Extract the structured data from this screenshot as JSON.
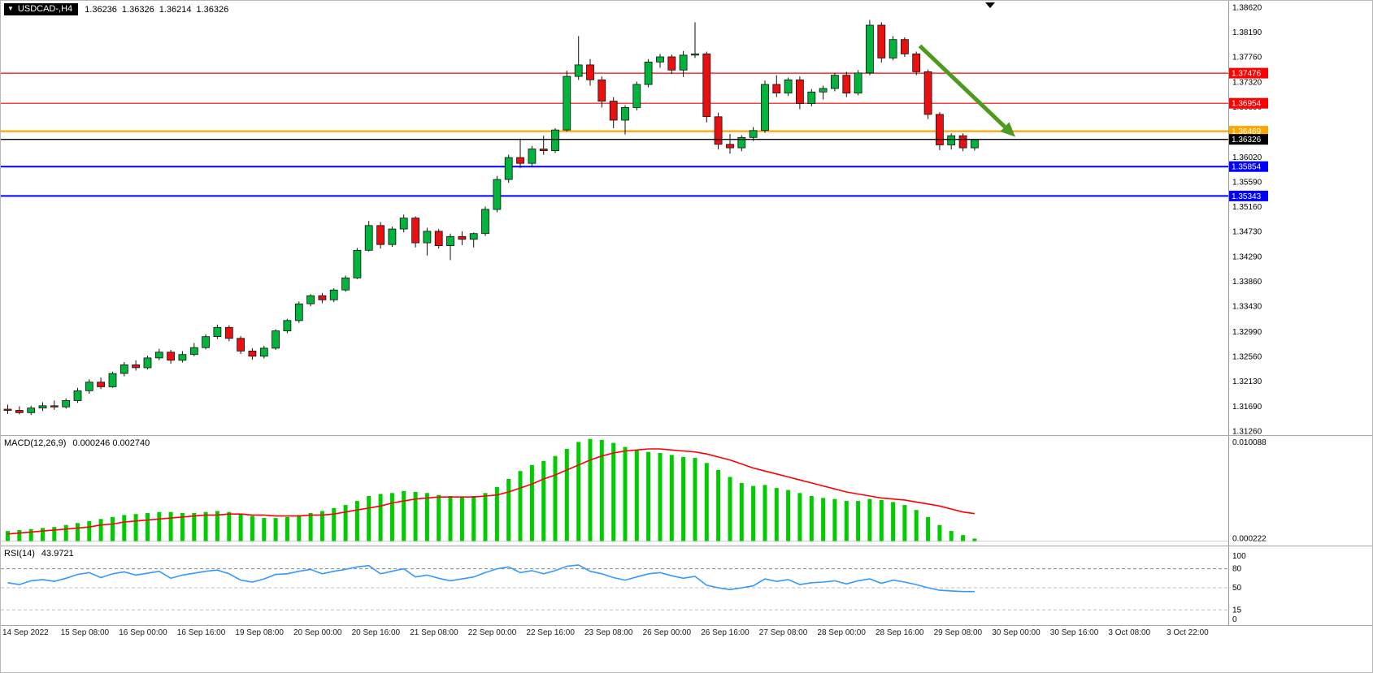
{
  "header": {
    "dropdown_icon": "▼",
    "symbol_timeframe": "USDCAD-,H4",
    "open": "1.36236",
    "high": "1.36326",
    "low": "1.36214",
    "close": "1.36326"
  },
  "colors": {
    "bull": "#00B43C",
    "bear": "#E81010",
    "wick": "#111111",
    "macd_hist": "#00CC00",
    "macd_signal": "#FF0000",
    "rsi_line": "#3399FF",
    "resistance": "#FF0000",
    "pivot": "#FFA500",
    "support": "#0000FF",
    "current": "#000000",
    "arrow": "#4E9A1E",
    "axis_text": "#000000",
    "separator": "#A8A8A8"
  },
  "price_axis": {
    "ticks": [
      "1.38620",
      "1.38190",
      "1.37760",
      "1.37320",
      "1.36890",
      "1.36460",
      "1.36020",
      "1.35590",
      "1.35160",
      "1.34730",
      "1.34290",
      "1.33860",
      "1.33430",
      "1.32990",
      "1.32560",
      "1.32130",
      "1.31690",
      "1.31260"
    ]
  },
  "time_axis": {
    "labels": [
      "14 Sep 2022",
      "15 Sep 08:00",
      "16 Sep 00:00",
      "16 Sep 16:00",
      "19 Sep 08:00",
      "20 Sep 00:00",
      "20 Sep 16:00",
      "21 Sep 08:00",
      "22 Sep 00:00",
      "22 Sep 16:00",
      "23 Sep 08:00",
      "26 Sep 00:00",
      "26 Sep 16:00",
      "27 Sep 08:00",
      "28 Sep 00:00",
      "28 Sep 16:00",
      "29 Sep 08:00",
      "30 Sep 00:00",
      "30 Sep 16:00",
      "3 Oct 08:00",
      "3 Oct 22:00"
    ]
  },
  "chart_data": [
    {
      "type": "candlestick",
      "title": "USDCAD H4",
      "ylim": [
        1.3126,
        1.3862
      ],
      "candles": [
        [
          1.3164,
          1.3172,
          1.3156,
          1.3162
        ],
        [
          1.3162,
          1.3169,
          1.3155,
          1.3158
        ],
        [
          1.3158,
          1.317,
          1.3154,
          1.3166
        ],
        [
          1.3166,
          1.3176,
          1.3161,
          1.317
        ],
        [
          1.317,
          1.3179,
          1.3163,
          1.3168
        ],
        [
          1.3168,
          1.3183,
          1.3165,
          1.3179
        ],
        [
          1.3179,
          1.3201,
          1.3175,
          1.3196
        ],
        [
          1.3196,
          1.3216,
          1.3191,
          1.3211
        ],
        [
          1.3211,
          1.3219,
          1.3199,
          1.3203
        ],
        [
          1.3203,
          1.3229,
          1.3201,
          1.3226
        ],
        [
          1.3226,
          1.3246,
          1.3221,
          1.3241
        ],
        [
          1.3241,
          1.3249,
          1.3231,
          1.3236
        ],
        [
          1.3236,
          1.3257,
          1.3233,
          1.3253
        ],
        [
          1.3253,
          1.3269,
          1.3249,
          1.3263
        ],
        [
          1.3263,
          1.3267,
          1.3243,
          1.3249
        ],
        [
          1.3249,
          1.3265,
          1.3245,
          1.3259
        ],
        [
          1.3259,
          1.3279,
          1.3256,
          1.3271
        ],
        [
          1.3271,
          1.3294,
          1.3268,
          1.329
        ],
        [
          1.329,
          1.3311,
          1.3286,
          1.3306
        ],
        [
          1.3306,
          1.331,
          1.3282,
          1.3287
        ],
        [
          1.3287,
          1.3291,
          1.326,
          1.3265
        ],
        [
          1.3265,
          1.327,
          1.325,
          1.3256
        ],
        [
          1.3256,
          1.3274,
          1.3252,
          1.327
        ],
        [
          1.327,
          1.3303,
          1.3267,
          1.33
        ],
        [
          1.33,
          1.3321,
          1.3296,
          1.3318
        ],
        [
          1.3318,
          1.3351,
          1.3314,
          1.3347
        ],
        [
          1.3347,
          1.3364,
          1.3343,
          1.3361
        ],
        [
          1.3361,
          1.3366,
          1.3348,
          1.3354
        ],
        [
          1.3354,
          1.3374,
          1.335,
          1.3371
        ],
        [
          1.3371,
          1.3396,
          1.3368,
          1.3392
        ],
        [
          1.3392,
          1.3444,
          1.339,
          1.344
        ],
        [
          1.344,
          1.3491,
          1.3438,
          1.3483
        ],
        [
          1.3483,
          1.3489,
          1.3443,
          1.345
        ],
        [
          1.345,
          1.3481,
          1.3446,
          1.3477
        ],
        [
          1.3477,
          1.3502,
          1.3471,
          1.3496
        ],
        [
          1.3496,
          1.3499,
          1.3445,
          1.3453
        ],
        [
          1.3453,
          1.3479,
          1.3431,
          1.3473
        ],
        [
          1.3473,
          1.3477,
          1.3443,
          1.3448
        ],
        [
          1.3448,
          1.3469,
          1.3423,
          1.3464
        ],
        [
          1.3464,
          1.3473,
          1.3449,
          1.3459
        ],
        [
          1.3459,
          1.3471,
          1.3445,
          1.3469
        ],
        [
          1.3469,
          1.3516,
          1.3465,
          1.3511
        ],
        [
          1.3511,
          1.3569,
          1.3506,
          1.3563
        ],
        [
          1.3563,
          1.3606,
          1.3557,
          1.3601
        ],
        [
          1.3601,
          1.3634,
          1.3583,
          1.3591
        ],
        [
          1.3591,
          1.3621,
          1.3586,
          1.3616
        ],
        [
          1.3616,
          1.3639,
          1.3606,
          1.3613
        ],
        [
          1.3613,
          1.3652,
          1.3609,
          1.3649
        ],
        [
          1.3649,
          1.3752,
          1.3646,
          1.3742
        ],
        [
          1.3742,
          1.3812,
          1.3736,
          1.3762
        ],
        [
          1.3762,
          1.3772,
          1.3726,
          1.3736
        ],
        [
          1.3736,
          1.3742,
          1.3688,
          1.3699
        ],
        [
          1.3699,
          1.3706,
          1.3652,
          1.3666
        ],
        [
          1.3666,
          1.3692,
          1.3641,
          1.3688
        ],
        [
          1.3688,
          1.3733,
          1.3683,
          1.3728
        ],
        [
          1.3728,
          1.3772,
          1.3723,
          1.3767
        ],
        [
          1.3767,
          1.3781,
          1.3757,
          1.3776
        ],
        [
          1.3776,
          1.378,
          1.3746,
          1.3753
        ],
        [
          1.3753,
          1.3786,
          1.3741,
          1.3779
        ],
        [
          1.3779,
          1.3836,
          1.3774,
          1.3781
        ],
        [
          1.3781,
          1.3785,
          1.3662,
          1.3672
        ],
        [
          1.3672,
          1.3679,
          1.3615,
          1.3624
        ],
        [
          1.3624,
          1.3642,
          1.3608,
          1.3618
        ],
        [
          1.3618,
          1.364,
          1.3612,
          1.3636
        ],
        [
          1.3636,
          1.3654,
          1.363,
          1.3648
        ],
        [
          1.3648,
          1.3735,
          1.3644,
          1.3728
        ],
        [
          1.3728,
          1.3744,
          1.3706,
          1.3713
        ],
        [
          1.3713,
          1.374,
          1.3708,
          1.3736
        ],
        [
          1.3736,
          1.3742,
          1.3685,
          1.3695
        ],
        [
          1.3695,
          1.372,
          1.369,
          1.3715
        ],
        [
          1.3715,
          1.3726,
          1.3702,
          1.3721
        ],
        [
          1.3721,
          1.3748,
          1.3716,
          1.3744
        ],
        [
          1.3744,
          1.375,
          1.3706,
          1.3713
        ],
        [
          1.3713,
          1.3753,
          1.3709,
          1.3748
        ],
        [
          1.3748,
          1.384,
          1.3744,
          1.3831
        ],
        [
          1.3831,
          1.3836,
          1.3766,
          1.3774
        ],
        [
          1.3774,
          1.3812,
          1.377,
          1.3806
        ],
        [
          1.3806,
          1.381,
          1.3776,
          1.3781
        ],
        [
          1.3781,
          1.3785,
          1.3744,
          1.375
        ],
        [
          1.375,
          1.3754,
          1.3668,
          1.3676
        ],
        [
          1.3676,
          1.368,
          1.3614,
          1.3623
        ],
        [
          1.3623,
          1.3643,
          1.3615,
          1.3639
        ],
        [
          1.3639,
          1.3643,
          1.3612,
          1.3618
        ],
        [
          1.3618,
          1.3633,
          1.3613,
          1.36326
        ]
      ],
      "hlines": [
        {
          "price": 1.37476,
          "label": "1.37476",
          "color": "#FF0000",
          "width": 1.2,
          "role": "resistance"
        },
        {
          "price": 1.36954,
          "label": "1.36954",
          "color": "#FF0000",
          "width": 1.2,
          "role": "resistance"
        },
        {
          "price": 1.36469,
          "label": "1.36469",
          "color": "#FFA500",
          "width": 2.2,
          "role": "pivot"
        },
        {
          "price": 1.35854,
          "label": "1.35854",
          "color": "#0000FF",
          "width": 2.0,
          "role": "support"
        },
        {
          "price": 1.35343,
          "label": "1.35343",
          "color": "#0000FF",
          "width": 2.0,
          "role": "support"
        }
      ],
      "current_price": {
        "price": 1.36326,
        "label": "1.36326",
        "color": "#000000"
      },
      "arrow": {
        "from_bar": 78.3,
        "from_price": 1.3795,
        "to_bar": 86.5,
        "to_price": 1.3637,
        "color": "#4E9A1E"
      }
    },
    {
      "type": "macd-histogram",
      "name_label": "MACD(12,26,9)",
      "value_text": "0.000246 0.002740",
      "macd_value": 0.000246,
      "signal_value": 0.00274,
      "ylim": [
        -0.00045,
        0.0105
      ],
      "y_ticks": [
        "0.010088",
        "0.000222"
      ],
      "histogram_color": "#00CC00",
      "signal_color": "#FF0000",
      "histogram": [
        0.001,
        0.0011,
        0.0012,
        0.0013,
        0.0014,
        0.0016,
        0.0018,
        0.002,
        0.0022,
        0.0024,
        0.0026,
        0.0027,
        0.0028,
        0.0029,
        0.0029,
        0.0028,
        0.0028,
        0.0029,
        0.003,
        0.0029,
        0.0027,
        0.0025,
        0.0023,
        0.0023,
        0.0024,
        0.0026,
        0.0028,
        0.003,
        0.0033,
        0.0036,
        0.004,
        0.0045,
        0.0047,
        0.0048,
        0.005,
        0.0049,
        0.0048,
        0.0046,
        0.0045,
        0.0044,
        0.0045,
        0.0048,
        0.0054,
        0.0062,
        0.007,
        0.0076,
        0.008,
        0.0085,
        0.0092,
        0.0099,
        0.0102,
        0.0101,
        0.0098,
        0.0094,
        0.0091,
        0.0089,
        0.0088,
        0.0086,
        0.0084,
        0.0083,
        0.0078,
        0.0071,
        0.0064,
        0.0058,
        0.0055,
        0.0056,
        0.0053,
        0.0051,
        0.0048,
        0.0045,
        0.0043,
        0.0042,
        0.004,
        0.004,
        0.0042,
        0.0041,
        0.0039,
        0.0036,
        0.0031,
        0.0024,
        0.0016,
        0.001,
        0.0006,
        0.00025
      ],
      "signal": [
        0.0007,
        0.0008,
        0.0009,
        0.001,
        0.0011,
        0.0012,
        0.0013,
        0.0014,
        0.0016,
        0.0017,
        0.0019,
        0.002,
        0.0021,
        0.0022,
        0.0023,
        0.0024,
        0.0025,
        0.0026,
        0.0026,
        0.0027,
        0.0027,
        0.0026,
        0.0026,
        0.0025,
        0.0025,
        0.0025,
        0.0026,
        0.0026,
        0.0027,
        0.0029,
        0.0031,
        0.0033,
        0.0035,
        0.0038,
        0.004,
        0.0042,
        0.0043,
        0.0044,
        0.0044,
        0.0044,
        0.0044,
        0.0045,
        0.0046,
        0.0049,
        0.0053,
        0.0057,
        0.0062,
        0.0066,
        0.0071,
        0.0076,
        0.0081,
        0.0085,
        0.0088,
        0.009,
        0.0091,
        0.0092,
        0.0092,
        0.0091,
        0.009,
        0.0089,
        0.0087,
        0.0084,
        0.0081,
        0.0077,
        0.0073,
        0.007,
        0.0067,
        0.0064,
        0.0061,
        0.0058,
        0.0055,
        0.0052,
        0.0049,
        0.0047,
        0.0045,
        0.0043,
        0.0042,
        0.0041,
        0.0039,
        0.0037,
        0.0035,
        0.0032,
        0.0029,
        0.00274
      ]
    },
    {
      "type": "rsi",
      "name_label": "RSI(14)",
      "value_text": "43.9721",
      "value": 43.9721,
      "ylim": [
        0,
        100
      ],
      "y_ticks": [
        "100",
        "80",
        "50",
        "15",
        "0"
      ],
      "levels": [
        80,
        50,
        15
      ],
      "line_color": "#3399FF",
      "values": [
        58,
        55,
        61,
        63,
        60,
        65,
        71,
        74,
        66,
        72,
        75,
        70,
        73,
        76,
        65,
        70,
        73,
        76,
        78,
        72,
        62,
        59,
        64,
        71,
        72,
        76,
        79,
        72,
        76,
        79,
        83,
        85,
        72,
        76,
        80,
        67,
        70,
        65,
        61,
        64,
        67,
        74,
        80,
        83,
        74,
        77,
        72,
        77,
        84,
        86,
        76,
        72,
        66,
        62,
        67,
        72,
        74,
        69,
        65,
        68,
        54,
        50,
        47,
        50,
        53,
        64,
        60,
        63,
        55,
        58,
        59,
        61,
        56,
        61,
        64,
        57,
        62,
        59,
        55,
        50,
        46,
        45,
        44,
        43.97
      ]
    }
  ]
}
